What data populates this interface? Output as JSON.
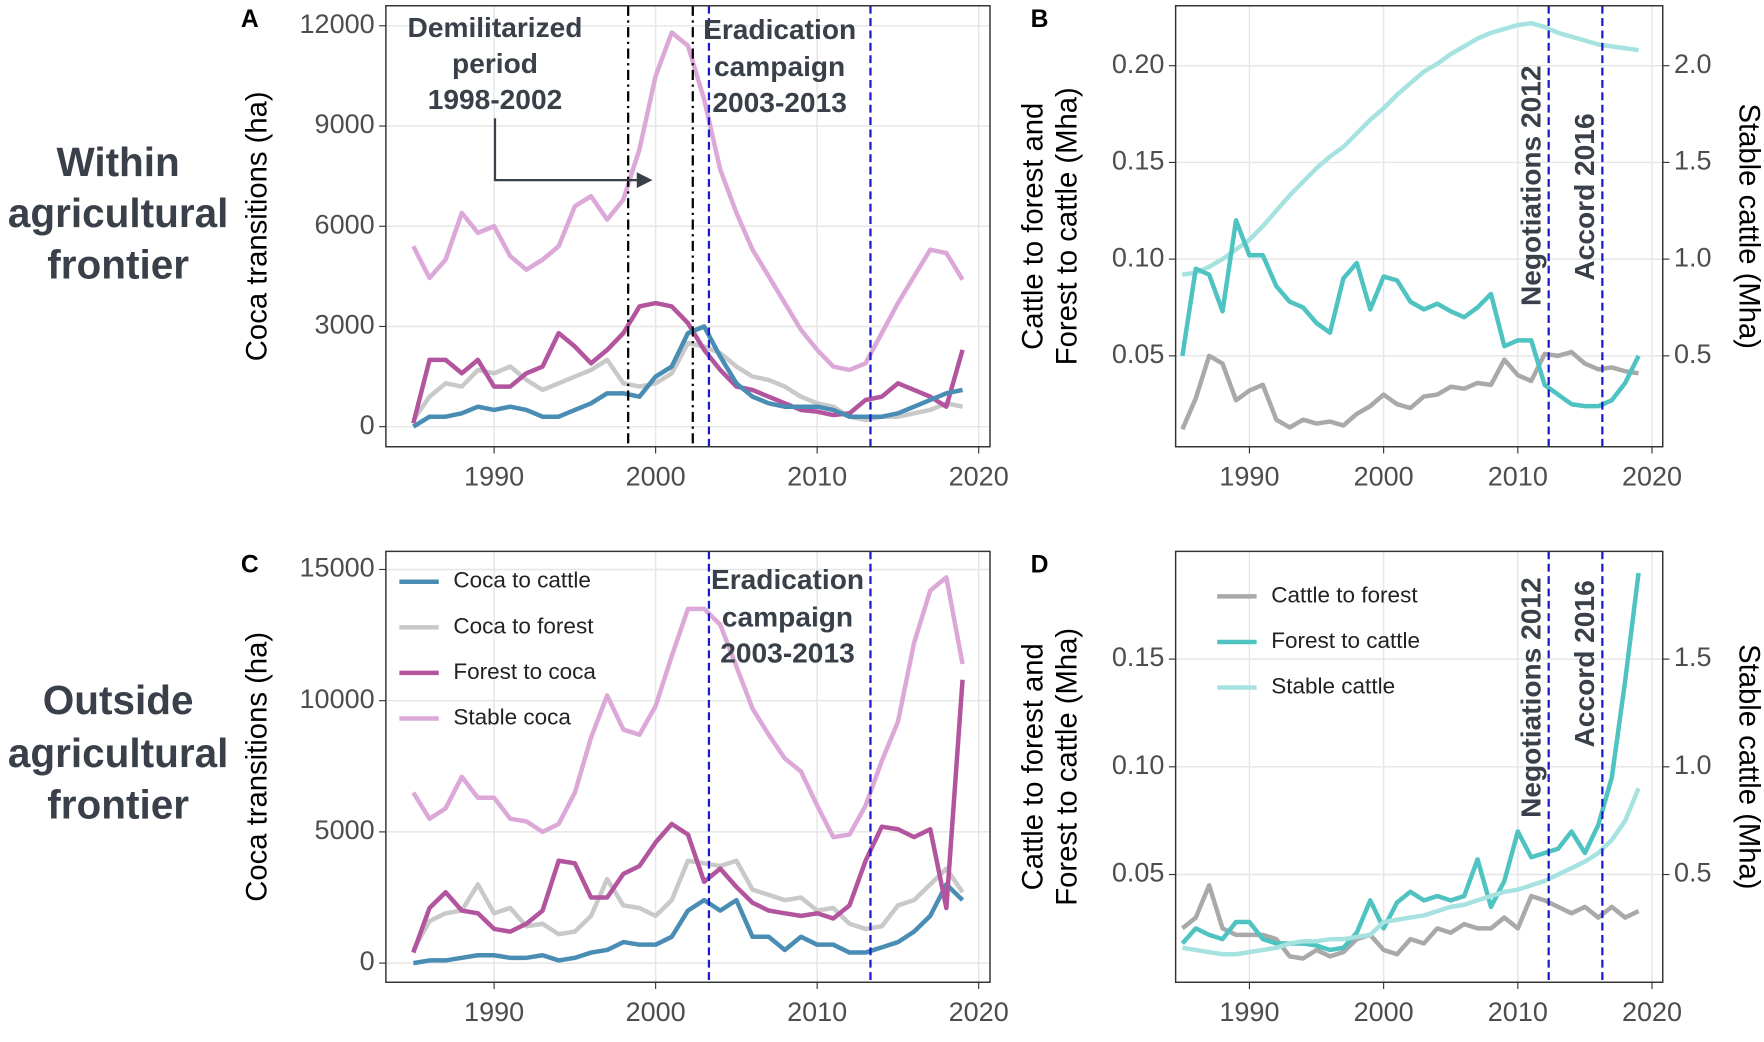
{
  "row_labels": [
    [
      "Within",
      "agricultural",
      "frontier"
    ],
    [
      "Outside",
      "agricultural",
      "frontier"
    ]
  ],
  "chart_data": [
    {
      "type": "line",
      "panel": "A",
      "ylabel": "Coca transitions (ha)",
      "legend": false,
      "xlim": [
        1983.3,
        2020.7
      ],
      "xticks": [
        1990,
        2000,
        2010,
        2020
      ],
      "ylim": [
        -600,
        12600
      ],
      "yticks": [
        0,
        3000,
        6000,
        9000,
        12000
      ],
      "grid": true,
      "x": [
        1985,
        1986,
        1987,
        1988,
        1989,
        1990,
        1991,
        1992,
        1993,
        1994,
        1995,
        1996,
        1997,
        1998,
        1999,
        2000,
        2001,
        2002,
        2003,
        2004,
        2005,
        2006,
        2007,
        2008,
        2009,
        2010,
        2011,
        2012,
        2013,
        2014,
        2015,
        2016,
        2017,
        2018,
        2019
      ],
      "series": [
        {
          "color": "#dba8d8",
          "values": [
            5400,
            4450,
            5000,
            6400,
            5800,
            6000,
            5100,
            4700,
            5000,
            5400,
            6600,
            6900,
            6200,
            6800,
            8300,
            10500,
            11800,
            11400,
            9800,
            7700,
            6400,
            5300,
            4500,
            3700,
            2900,
            2300,
            1800,
            1700,
            1900,
            2800,
            3700,
            4500,
            5300,
            5200,
            4400
          ]
        },
        {
          "color": "#c9c9c9",
          "values": [
            200,
            900,
            1300,
            1200,
            1700,
            1600,
            1800,
            1400,
            1100,
            1300,
            1500,
            1700,
            2000,
            1300,
            1200,
            1300,
            1600,
            2500,
            2400,
            2200,
            1800,
            1500,
            1400,
            1200,
            900,
            700,
            600,
            300,
            200,
            300,
            300,
            400,
            500,
            700,
            600
          ]
        },
        {
          "color": "#b3559e",
          "values": [
            100,
            2000,
            2000,
            1600,
            2000,
            1200,
            1200,
            1600,
            1800,
            2800,
            2400,
            1900,
            2300,
            2800,
            3600,
            3700,
            3600,
            3100,
            2300,
            1700,
            1200,
            1100,
            900,
            700,
            500,
            450,
            350,
            400,
            800,
            900,
            1300,
            1100,
            900,
            600,
            2300
          ]
        },
        {
          "color": "#4a8db4",
          "values": [
            0,
            300,
            300,
            400,
            600,
            500,
            600,
            500,
            300,
            300,
            500,
            700,
            1000,
            1000,
            900,
            1500,
            1800,
            2800,
            3000,
            2100,
            1300,
            900,
            700,
            600,
            600,
            600,
            500,
            300,
            300,
            300,
            400,
            600,
            800,
            1000,
            1100
          ]
        }
      ],
      "vlines": [
        {
          "x": 1998.3,
          "color": "#000000",
          "style": "dashdot"
        },
        {
          "x": 2002.3,
          "color": "#000000",
          "style": "dashdot"
        },
        {
          "x": 2003.3,
          "color": "#1a1acc",
          "style": "dashed"
        },
        {
          "x": 2013.3,
          "color": "#1a1acc",
          "style": "dashed"
        }
      ],
      "annotations": [
        [
          "Demilitarized",
          "period",
          "1998-2002"
        ],
        [
          "Eradication",
          "campaign",
          "2003-2013"
        ]
      ]
    },
    {
      "type": "line",
      "panel": "B",
      "ylabel": [
        "Cattle to forest and",
        "Forest to cattle (Mha)"
      ],
      "y2label": "Stable cattle (Mha)",
      "legend": false,
      "xlim": [
        1984.5,
        2020.8
      ],
      "xticks": [
        1990,
        2000,
        2010,
        2020
      ],
      "ylim": [
        0.003,
        0.231
      ],
      "yticks": [
        0.05,
        {
          "value": 0.1,
          "label": "0.10"
        },
        0.15,
        {
          "value": 0.2,
          "label": "0.20"
        }
      ],
      "y2lim": [
        0.03,
        2.31
      ],
      "y2ticks": [
        0.5,
        {
          "value": 1,
          "label": "1.0"
        },
        1.5,
        {
          "value": 2,
          "label": "2.0"
        }
      ],
      "grid": true,
      "x": [
        1985,
        1986,
        1987,
        1988,
        1989,
        1990,
        1991,
        1992,
        1993,
        1994,
        1995,
        1996,
        1997,
        1998,
        1999,
        2000,
        2001,
        2002,
        2003,
        2004,
        2005,
        2006,
        2007,
        2008,
        2009,
        2010,
        2011,
        2012,
        2013,
        2014,
        2015,
        2016,
        2017,
        2018,
        2019
      ],
      "series": [
        {
          "color": "#a6e3e0",
          "axis": "y2",
          "values": [
            0.92,
            0.93,
            0.96,
            1.0,
            1.05,
            1.1,
            1.17,
            1.25,
            1.33,
            1.4,
            1.47,
            1.53,
            1.58,
            1.65,
            1.72,
            1.78,
            1.85,
            1.91,
            1.97,
            2.01,
            2.06,
            2.1,
            2.14,
            2.17,
            2.19,
            2.21,
            2.22,
            2.2,
            2.17,
            2.15,
            2.13,
            2.11,
            2.1,
            2.09,
            2.08
          ]
        },
        {
          "color": "#a9a9a9",
          "values": [
            0.012,
            0.028,
            0.05,
            0.046,
            0.027,
            0.032,
            0.035,
            0.017,
            0.013,
            0.017,
            0.015,
            0.016,
            0.014,
            0.02,
            0.024,
            0.03,
            0.025,
            0.023,
            0.029,
            0.03,
            0.034,
            0.033,
            0.036,
            0.035,
            0.048,
            0.04,
            0.037,
            0.051,
            0.05,
            0.052,
            0.046,
            0.043,
            0.044,
            0.042,
            0.041
          ]
        },
        {
          "color": "#4ec3c1",
          "values": [
            0.05,
            0.095,
            0.092,
            0.073,
            0.12,
            0.102,
            0.102,
            0.086,
            0.078,
            0.075,
            0.067,
            0.062,
            0.09,
            0.098,
            0.074,
            0.091,
            0.089,
            0.078,
            0.074,
            0.077,
            0.073,
            0.07,
            0.075,
            0.082,
            0.055,
            0.058,
            0.058,
            0.035,
            0.03,
            0.025,
            0.024,
            0.024,
            0.027,
            0.036,
            0.05
          ]
        }
      ],
      "vlines": [
        {
          "x": 2012.3,
          "color": "#1a1acc",
          "style": "dashed",
          "label": "Negotiations 2012"
        },
        {
          "x": 2016.3,
          "color": "#1a1acc",
          "style": "dashed",
          "label": "Accord 2016"
        }
      ]
    },
    {
      "type": "line",
      "panel": "C",
      "ylabel": "Coca transitions (ha)",
      "legend": "top-left",
      "xlim": [
        1983.3,
        2020.7
      ],
      "xticks": [
        1990,
        2000,
        2010,
        2020
      ],
      "ylim": [
        -730,
        15690
      ],
      "yticks": [
        0,
        5000,
        10000,
        15000
      ],
      "grid": true,
      "x": [
        1985,
        1986,
        1987,
        1988,
        1989,
        1990,
        1991,
        1992,
        1993,
        1994,
        1995,
        1996,
        1997,
        1998,
        1999,
        2000,
        2001,
        2002,
        2003,
        2004,
        2005,
        2006,
        2007,
        2008,
        2009,
        2010,
        2011,
        2012,
        2013,
        2014,
        2015,
        2016,
        2017,
        2018,
        2019
      ],
      "series": [
        {
          "name": "Coca to cattle",
          "color": "#4a8db4",
          "values": [
            0,
            100,
            100,
            200,
            300,
            300,
            200,
            200,
            300,
            100,
            200,
            400,
            500,
            800,
            700,
            700,
            1000,
            2000,
            2400,
            2000,
            2400,
            1000,
            1000,
            500,
            1000,
            700,
            700,
            400,
            400,
            600,
            800,
            1200,
            1800,
            3000,
            2400
          ]
        },
        {
          "name": "Coca to forest",
          "color": "#c9c9c9",
          "values": [
            500,
            1600,
            1900,
            2000,
            3000,
            1900,
            2100,
            1400,
            1500,
            1100,
            1200,
            1800,
            3200,
            2200,
            2100,
            1800,
            2400,
            3900,
            3800,
            3700,
            3900,
            2800,
            2600,
            2400,
            2500,
            2000,
            2100,
            1500,
            1300,
            1400,
            2200,
            2400,
            3000,
            3600,
            2700
          ]
        },
        {
          "name": "Forest to coca",
          "color": "#b3559e",
          "values": [
            400,
            2100,
            2700,
            2000,
            1900,
            1300,
            1200,
            1500,
            2000,
            3900,
            3800,
            2500,
            2500,
            3400,
            3700,
            4600,
            5300,
            4900,
            3100,
            3600,
            2900,
            2300,
            2000,
            1900,
            1800,
            1900,
            1700,
            2200,
            3900,
            5200,
            5100,
            4800,
            5100,
            2100,
            10800
          ]
        },
        {
          "name": "Stable coca",
          "color": "#dba8d8",
          "values": [
            6500,
            5500,
            5900,
            7100,
            6300,
            6300,
            5500,
            5400,
            5000,
            5300,
            6500,
            8600,
            10200,
            8900,
            8700,
            9800,
            11700,
            13500,
            13500,
            12900,
            11300,
            9700,
            8700,
            7800,
            7300,
            6000,
            4800,
            4900,
            6000,
            7700,
            9200,
            12200,
            14200,
            14700,
            11400
          ]
        }
      ],
      "vlines": [
        {
          "x": 2003.3,
          "color": "#1a1acc",
          "style": "dashed"
        },
        {
          "x": 2013.3,
          "color": "#1a1acc",
          "style": "dashed"
        }
      ],
      "annotations": [
        [
          "Eradication",
          "campaign",
          "2003-2013"
        ]
      ]
    },
    {
      "type": "line",
      "panel": "D",
      "ylabel": [
        "Cattle to forest and",
        "Forest to cattle (Mha)"
      ],
      "y2label": "Stable cattle (Mha)",
      "legend": "top-left",
      "xlim": [
        1984.5,
        2020.8
      ],
      "xticks": [
        1990,
        2000,
        2010,
        2020
      ],
      "ylim": [
        0,
        0.2
      ],
      "yticks": [
        0.05,
        {
          "value": 0.1,
          "label": "0.10"
        },
        0.15
      ],
      "y2lim": [
        0,
        2.0
      ],
      "y2ticks": [
        0.5,
        {
          "value": 1,
          "label": "1.0"
        },
        1.5
      ],
      "grid": true,
      "x": [
        1985,
        1986,
        1987,
        1988,
        1989,
        1990,
        1991,
        1992,
        1993,
        1994,
        1995,
        1996,
        1997,
        1998,
        1999,
        2000,
        2001,
        2002,
        2003,
        2004,
        2005,
        2006,
        2007,
        2008,
        2009,
        2010,
        2011,
        2012,
        2013,
        2014,
        2015,
        2016,
        2017,
        2018,
        2019
      ],
      "series": [
        {
          "name": "Cattle to forest",
          "color": "#a9a9a9",
          "values": [
            0.025,
            0.03,
            0.045,
            0.025,
            0.022,
            0.022,
            0.022,
            0.02,
            0.012,
            0.011,
            0.015,
            0.012,
            0.014,
            0.02,
            0.022,
            0.015,
            0.013,
            0.02,
            0.018,
            0.025,
            0.023,
            0.027,
            0.025,
            0.025,
            0.03,
            0.025,
            0.04,
            0.038,
            0.035,
            0.032,
            0.035,
            0.03,
            0.035,
            0.03,
            0.033
          ]
        },
        {
          "name": "Forest to cattle",
          "color": "#4ec3c1",
          "values": [
            0.018,
            0.025,
            0.022,
            0.02,
            0.028,
            0.028,
            0.02,
            0.018,
            0.018,
            0.018,
            0.017,
            0.015,
            0.016,
            0.023,
            0.038,
            0.025,
            0.037,
            0.042,
            0.038,
            0.04,
            0.038,
            0.04,
            0.057,
            0.035,
            0.047,
            0.07,
            0.058,
            0.06,
            0.062,
            0.07,
            0.06,
            0.073,
            0.095,
            0.14,
            0.19
          ]
        },
        {
          "name": "Stable cattle",
          "color": "#a6e3e0",
          "axis": "y2",
          "values": [
            0.16,
            0.15,
            0.14,
            0.13,
            0.13,
            0.14,
            0.15,
            0.16,
            0.18,
            0.19,
            0.19,
            0.2,
            0.2,
            0.21,
            0.22,
            0.28,
            0.29,
            0.3,
            0.31,
            0.33,
            0.35,
            0.36,
            0.38,
            0.4,
            0.42,
            0.43,
            0.45,
            0.47,
            0.5,
            0.53,
            0.56,
            0.6,
            0.66,
            0.75,
            0.9
          ]
        }
      ],
      "vlines": [
        {
          "x": 2012.3,
          "color": "#1a1acc",
          "style": "dashed",
          "label": "Negotiations 2012"
        },
        {
          "x": 2016.3,
          "color": "#1a1acc",
          "style": "dashed",
          "label": "Accord 2016"
        }
      ]
    }
  ]
}
